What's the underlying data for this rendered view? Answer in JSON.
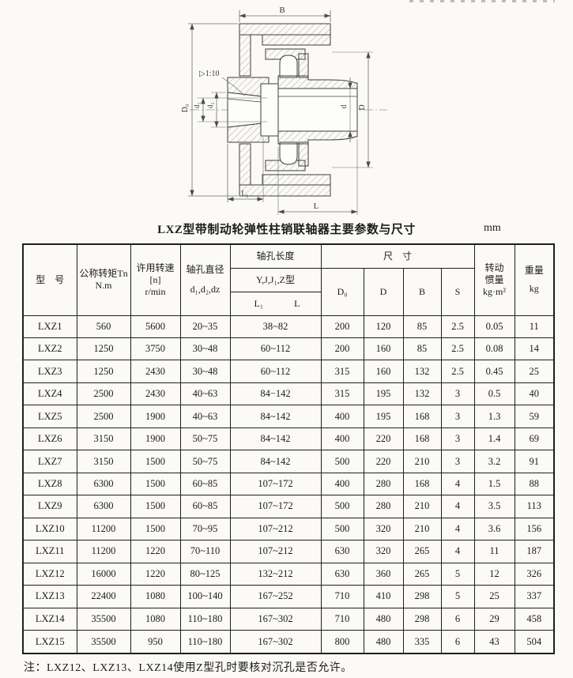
{
  "page": {
    "title": "LXZ型带制动轮弹性柱销联轴器主要参数与尺寸",
    "unit": "mm",
    "footnote": "注：LXZ12、LXZ13、LXZ14使用Z型孔时要核对沉孔是否允许。"
  },
  "drawing": {
    "labels": {
      "b": "B",
      "taper": "▷1:10",
      "big_d0": "D₀",
      "small_d1": "d₁",
      "small_d2": "d₂",
      "small_d": "d",
      "big_d": "D",
      "l1": "L₁",
      "l": "L"
    }
  },
  "table": {
    "header": {
      "model": "型　号",
      "torque_line1": "公称转矩Tn",
      "torque_line2": "N.m",
      "speed_line1": "许用转速",
      "speed_line2": "[n]",
      "speed_line3": "r/min",
      "bore_dia_line1": "轴孔直径",
      "bore_dia_line2": "d₁,d₂,dz",
      "bore_len_group": "轴孔长度",
      "bore_len_types": "Y,J,J₁,Z型",
      "bore_len_l1": "L₁",
      "bore_len_l": "L",
      "size_group": "尺　寸",
      "size_cols": [
        "D₀",
        "D",
        "B",
        "S"
      ],
      "inertia_line1": "转动",
      "inertia_line2": "惯量",
      "inertia_line3": "kg·m²",
      "weight_line1": "重量",
      "weight_line2": "kg"
    },
    "rows": [
      [
        "LXZ1",
        "560",
        "5600",
        "20~35",
        "38~82",
        "200",
        "120",
        "85",
        "2.5",
        "0.05",
        "11"
      ],
      [
        "LXZ2",
        "1250",
        "3750",
        "30~48",
        "60~112",
        "200",
        "160",
        "85",
        "2.5",
        "0.08",
        "14"
      ],
      [
        "LXZ3",
        "1250",
        "2430",
        "30~48",
        "60~112",
        "315",
        "160",
        "132",
        "2.5",
        "0.45",
        "25"
      ],
      [
        "LXZ4",
        "2500",
        "2430",
        "40~63",
        "84−142",
        "315",
        "195",
        "132",
        "3",
        "0.5",
        "40"
      ],
      [
        "LXZ5",
        "2500",
        "1900",
        "40~63",
        "84~142",
        "400",
        "195",
        "168",
        "3",
        "1.3",
        "59"
      ],
      [
        "LXZ6",
        "3150",
        "1900",
        "50~75",
        "84~142",
        "400",
        "220",
        "168",
        "3",
        "1.4",
        "69"
      ],
      [
        "LXZ7",
        "3150",
        "1500",
        "50~75",
        "84~142",
        "500",
        "220",
        "210",
        "3",
        "3.2",
        "91"
      ],
      [
        "LXZ8",
        "6300",
        "1500",
        "60~85",
        "107~172",
        "400",
        "280",
        "168",
        "4",
        "1.5",
        "88"
      ],
      [
        "LXZ9",
        "6300",
        "1500",
        "60~85",
        "107~172",
        "500",
        "280",
        "210",
        "4",
        "3.5",
        "113"
      ],
      [
        "LXZ10",
        "11200",
        "1500",
        "70~95",
        "107~212",
        "500",
        "320",
        "210",
        "4",
        "3.6",
        "156"
      ],
      [
        "LXZ11",
        "11200",
        "1220",
        "70~110",
        "107~212",
        "630",
        "320",
        "265",
        "4",
        "11",
        "187"
      ],
      [
        "LXZ12",
        "16000",
        "1220",
        "80~125",
        "132~212",
        "630",
        "360",
        "265",
        "5",
        "12",
        "326"
      ],
      [
        "LXZ13",
        "22400",
        "1080",
        "100~140",
        "167~252",
        "710",
        "410",
        "298",
        "5",
        "25",
        "337"
      ],
      [
        "LXZ14",
        "35500",
        "1080",
        "110~180",
        "167~302",
        "710",
        "480",
        "298",
        "6",
        "29",
        "458"
      ],
      [
        "LXZ15",
        "35500",
        "950",
        "110~180",
        "167~302",
        "800",
        "480",
        "335",
        "6",
        "43",
        "504"
      ]
    ]
  }
}
